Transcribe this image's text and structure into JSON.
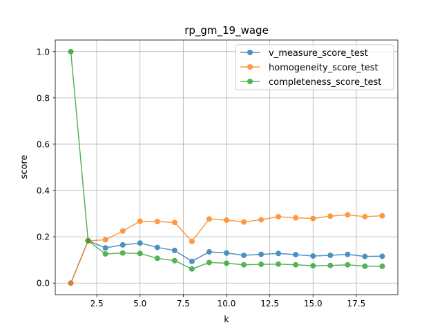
{
  "chart_data": {
    "type": "line",
    "title": "rp_gm_19_wage",
    "xlabel": "k",
    "ylabel": "score",
    "xlim": [
      0.1,
      19.9
    ],
    "ylim": [
      -0.05,
      1.05
    ],
    "xticks": [
      2.5,
      5.0,
      7.5,
      10.0,
      12.5,
      15.0,
      17.5
    ],
    "xtick_labels": [
      "2.5",
      "5.0",
      "7.5",
      "10.0",
      "12.5",
      "15.0",
      "17.5"
    ],
    "yticks": [
      0.0,
      0.2,
      0.4,
      0.6,
      0.8,
      1.0
    ],
    "ytick_labels": [
      "0.0",
      "0.2",
      "0.4",
      "0.6",
      "0.8",
      "1.0"
    ],
    "grid": true,
    "legend_position": "top-right",
    "x": [
      1,
      2,
      3,
      4,
      5,
      6,
      7,
      8,
      9,
      10,
      11,
      12,
      13,
      14,
      15,
      16,
      17,
      18,
      19
    ],
    "series": [
      {
        "name": "v_measure_score_test",
        "color": "#1f77b4",
        "values": [
          0.0,
          0.183,
          0.152,
          0.165,
          0.173,
          0.154,
          0.141,
          0.094,
          0.135,
          0.13,
          0.12,
          0.124,
          0.128,
          0.123,
          0.117,
          0.12,
          0.124,
          0.115,
          0.116
        ]
      },
      {
        "name": "homogeneity_score_test",
        "color": "#ff7f0e",
        "values": [
          0.0,
          0.183,
          0.187,
          0.225,
          0.267,
          0.266,
          0.262,
          0.18,
          0.277,
          0.272,
          0.264,
          0.274,
          0.287,
          0.282,
          0.279,
          0.289,
          0.295,
          0.287,
          0.291
        ]
      },
      {
        "name": "completeness_score_test",
        "color": "#2ca02c",
        "values": [
          1.0,
          0.183,
          0.126,
          0.13,
          0.128,
          0.107,
          0.097,
          0.061,
          0.089,
          0.086,
          0.079,
          0.081,
          0.082,
          0.079,
          0.075,
          0.076,
          0.079,
          0.073,
          0.073
        ]
      }
    ]
  }
}
